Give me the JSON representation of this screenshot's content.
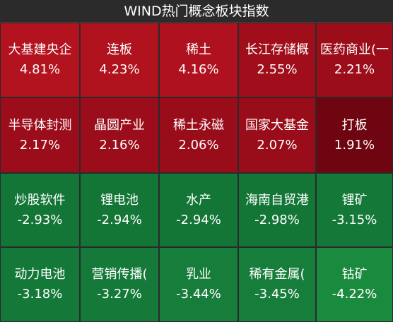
{
  "header": {
    "title": "WIND热门概念板块指数"
  },
  "tiles": [
    {
      "name": "大基建央企",
      "change": "4.81%",
      "color": "#b3121f"
    },
    {
      "name": "连板",
      "change": "4.23%",
      "color": "#b0121e"
    },
    {
      "name": "稀土",
      "change": "4.16%",
      "color": "#af121e"
    },
    {
      "name": "长江存储概",
      "change": "2.55%",
      "color": "#a00e1b"
    },
    {
      "name": "医药商业(一",
      "change": "2.21%",
      "color": "#9c0d1a"
    },
    {
      "name": "半导体封测",
      "change": "2.17%",
      "color": "#9b0d1a"
    },
    {
      "name": "晶圆产业",
      "change": "2.16%",
      "color": "#9b0d1a"
    },
    {
      "name": "稀土永磁",
      "change": "2.06%",
      "color": "#990c19"
    },
    {
      "name": "国家大基金",
      "change": "2.07%",
      "color": "#990c19"
    },
    {
      "name": "打板",
      "change": "1.91%",
      "color": "#6f0510"
    },
    {
      "name": "炒股软件",
      "change": "-2.93%",
      "color": "#137536"
    },
    {
      "name": "锂电池",
      "change": "-2.94%",
      "color": "#137536"
    },
    {
      "name": "水产",
      "change": "-2.94%",
      "color": "#137536"
    },
    {
      "name": "海南自贸港",
      "change": "-2.98%",
      "color": "#137637"
    },
    {
      "name": "锂矿",
      "change": "-3.15%",
      "color": "#147838"
    },
    {
      "name": "动力电池",
      "change": "-3.18%",
      "color": "#147838"
    },
    {
      "name": "营销传播(",
      "change": "-3.27%",
      "color": "#157a39"
    },
    {
      "name": "乳业",
      "change": "-3.44%",
      "color": "#167e3a"
    },
    {
      "name": "稀有金属(",
      "change": "-3.45%",
      "color": "#167e3a"
    },
    {
      "name": "钴矿",
      "change": "-4.22%",
      "color": "#1a8a3e"
    }
  ]
}
